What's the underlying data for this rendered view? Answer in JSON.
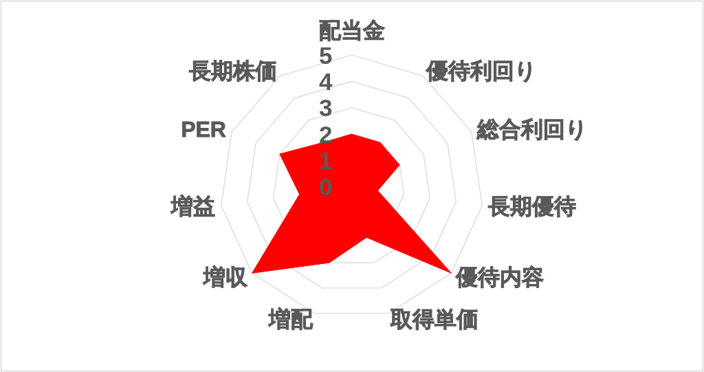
{
  "chart_data": {
    "type": "radar",
    "categories": [
      "配当金",
      "優待利回り",
      "総合利回り",
      "長期優待",
      "優待内容",
      "取得単価",
      "増配",
      "増収",
      "増益",
      "PER",
      "長期株価"
    ],
    "series": [
      {
        "color": "#ff0000",
        "values": [
          2,
          2,
          2,
          1,
          5,
          2,
          3,
          5,
          2,
          3,
          2
        ]
      }
    ],
    "ylim": [
      0,
      5
    ],
    "yticks": [
      0,
      1,
      2,
      3,
      4,
      5
    ],
    "grid": true
  }
}
